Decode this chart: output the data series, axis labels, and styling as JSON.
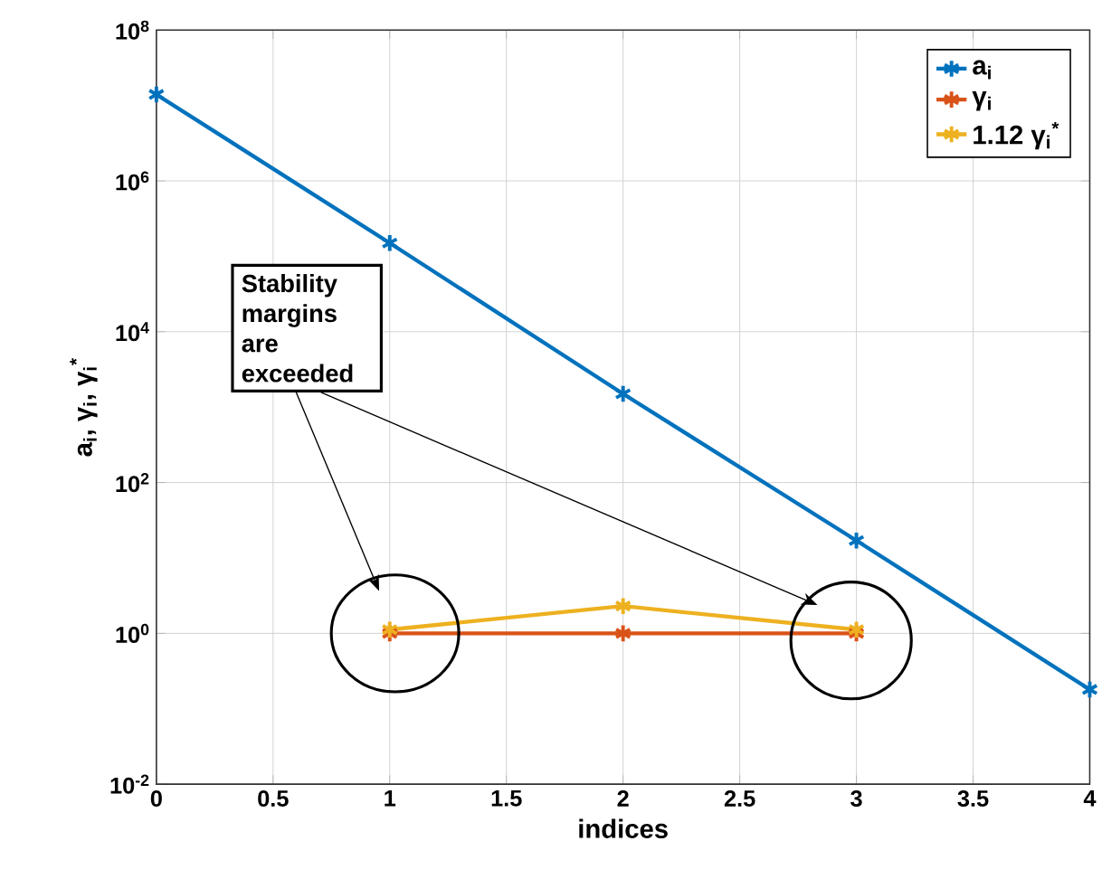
{
  "chart_data": {
    "type": "line",
    "xlabel": "indices",
    "ylabel": "a$_{i}$, γ$_{i}$, γ$_{i}$$^{*}$",
    "x": [
      0,
      1,
      2,
      3,
      4
    ],
    "series": [
      {
        "name": "a$_{i}$",
        "color": "#0072bd",
        "values": [
          14000000.0,
          150000.0,
          1500.0,
          17,
          0.18
        ]
      },
      {
        "name": "γ$_{i}$",
        "color": "#d95319",
        "x": [
          1,
          2,
          3
        ],
        "values": [
          1,
          1,
          1
        ]
      },
      {
        "name": "1.12 γ$_{i}$$^{*}$",
        "color": "#edb120",
        "x": [
          1,
          2,
          3
        ],
        "values": [
          1.12,
          2.3,
          1.12
        ]
      }
    ],
    "xlim": [
      0,
      4
    ],
    "xticks": [
      0,
      0.5,
      1,
      1.5,
      2,
      2.5,
      3,
      3.5,
      4
    ],
    "ylim": [
      0.01,
      100000000.0
    ],
    "yticks": [
      {
        "value": 0.01,
        "label": "10$^{-2}$"
      },
      {
        "value": 1,
        "label": "10$^{0}$"
      },
      {
        "value": 100,
        "label": "10$^{2}$"
      },
      {
        "value": 10000,
        "label": "10$^{4}$"
      },
      {
        "value": 1000000,
        "label": "10$^{6}$"
      },
      {
        "value": 100000000,
        "label": "10$^{8}$"
      }
    ],
    "log": "y",
    "grid": true,
    "legend": "top right",
    "marker": "cross",
    "line_style": "solid",
    "annotations": [
      "Stability margins are exceeded"
    ]
  }
}
